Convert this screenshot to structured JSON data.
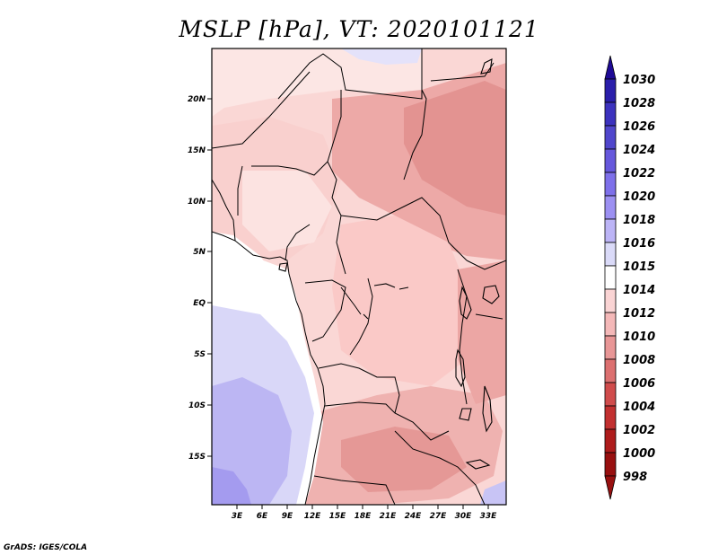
{
  "title": "MSLP [hPa], VT: 2020101121",
  "credit": "GrADS: IGES/COLA",
  "map": {
    "variable": "MSLP",
    "units": "hPa",
    "valid_time": "2020101121",
    "lat_ticks": [
      "20N",
      "15N",
      "10N",
      "5N",
      "EQ",
      "5S",
      "10S",
      "15S"
    ],
    "lon_ticks": [
      "3E",
      "6E",
      "9E",
      "12E",
      "15E",
      "18E",
      "21E",
      "24E",
      "27E",
      "30E",
      "33E"
    ]
  },
  "colorbar": {
    "levels": [
      "1030",
      "1028",
      "1026",
      "1024",
      "1022",
      "1020",
      "1018",
      "1016",
      "1015",
      "1014",
      "1012",
      "1010",
      "1008",
      "1006",
      "1004",
      "1002",
      "1000",
      "998"
    ],
    "colors": [
      "#1e0a96",
      "#2a1eaa",
      "#3c32be",
      "#5046cc",
      "#6658dc",
      "#7e70ea",
      "#9c90f2",
      "#bcb4f6",
      "#dadaf8",
      "#ffffff",
      "#fad4d4",
      "#f4b8b8",
      "#e89696",
      "#dc7070",
      "#d04c4c",
      "#c23030",
      "#ae1c1c",
      "#981010"
    ]
  },
  "colors": {
    "land_light": "#fce4e2",
    "land_mid": "#f9cfcc",
    "land_dark": "#eba5a3",
    "land_deep": "#e0908e",
    "ocean_white": "#ffffff",
    "ocean_light": "#d6d4f7",
    "ocean_mid": "#b8b2f2",
    "ocean_deep": "#9f95ee"
  }
}
